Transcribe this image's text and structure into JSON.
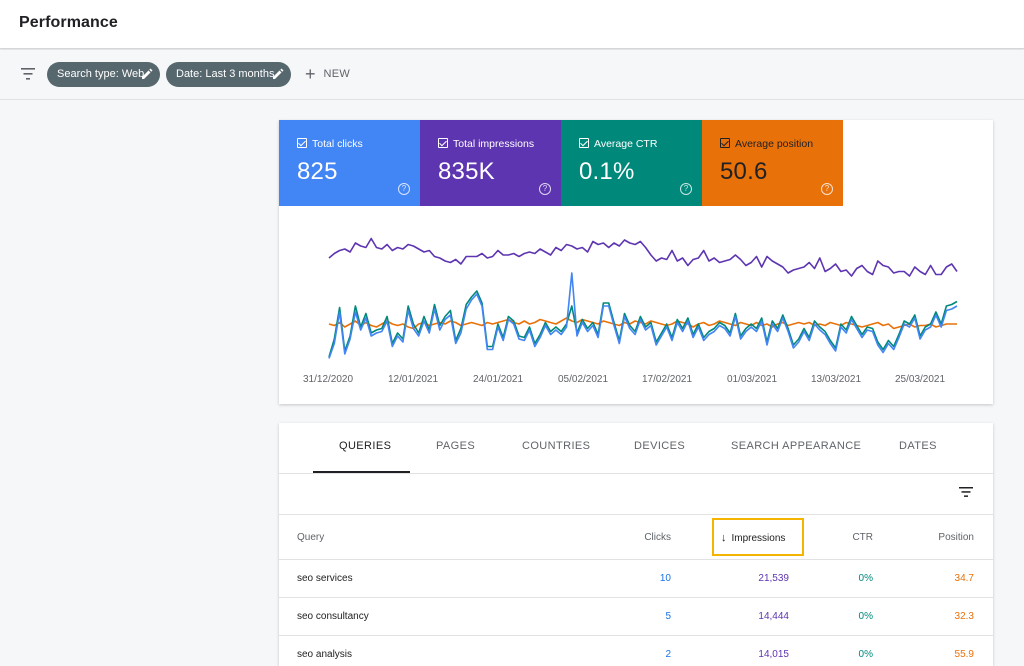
{
  "header": {
    "title": "Performance"
  },
  "filters": {
    "chips": [
      "Search type: Web",
      "Date: Last 3 months"
    ],
    "new_label": "NEW"
  },
  "metrics": [
    {
      "label": "Total clicks",
      "value": "825",
      "color": "#4285f4"
    },
    {
      "label": "Total impressions",
      "value": "835K",
      "color": "#5e35b1"
    },
    {
      "label": "Average CTR",
      "value": "0.1%",
      "color": "#00897b"
    },
    {
      "label": "Average position",
      "value": "50.6",
      "color": "#e8710a"
    }
  ],
  "chart_data": {
    "type": "line",
    "x_ticks": [
      "31/12/2020",
      "12/01/2021",
      "24/01/2021",
      "05/02/2021",
      "17/02/2021",
      "01/03/2021",
      "13/03/2021",
      "25/03/2021"
    ],
    "series": [
      {
        "key": "impressions",
        "color": "#5e35b1",
        "values": [
          0.72,
          0.75,
          0.77,
          0.78,
          0.76,
          0.82,
          0.8,
          0.79,
          0.85,
          0.79,
          0.78,
          0.81,
          0.77,
          0.79,
          0.78,
          0.81,
          0.8,
          0.78,
          0.76,
          0.77,
          0.73,
          0.72,
          0.7,
          0.69,
          0.71,
          0.68,
          0.73,
          0.73,
          0.73,
          0.75,
          0.72,
          0.73,
          0.77,
          0.74,
          0.74,
          0.75,
          0.73,
          0.75,
          0.76,
          0.75,
          0.78,
          0.76,
          0.74,
          0.79,
          0.77,
          0.81,
          0.8,
          0.78,
          0.79,
          0.76,
          0.83,
          0.81,
          0.82,
          0.79,
          0.82,
          0.8,
          0.84,
          0.82,
          0.81,
          0.83,
          0.79,
          0.74,
          0.7,
          0.72,
          0.71,
          0.77,
          0.7,
          0.72,
          0.67,
          0.71,
          0.72,
          0.77,
          0.7,
          0.72,
          0.69,
          0.7,
          0.71,
          0.74,
          0.71,
          0.67,
          0.69,
          0.73,
          0.66,
          0.73,
          0.7,
          0.68,
          0.66,
          0.62,
          0.64,
          0.65,
          0.66,
          0.69,
          0.65,
          0.72,
          0.63,
          0.65,
          0.68,
          0.63,
          0.64,
          0.6,
          0.65,
          0.67,
          0.63,
          0.61,
          0.7,
          0.67,
          0.66,
          0.62,
          0.63,
          0.63,
          0.6,
          0.66,
          0.63,
          0.61,
          0.67,
          0.61,
          0.61,
          0.66,
          0.68,
          0.63
        ]
      },
      {
        "key": "position",
        "color": "#e8710a",
        "values": [
          0.28,
          0.27,
          0.29,
          0.26,
          0.28,
          0.3,
          0.27,
          0.29,
          0.27,
          0.26,
          0.28,
          0.3,
          0.28,
          0.27,
          0.28,
          0.26,
          0.25,
          0.28,
          0.29,
          0.27,
          0.28,
          0.29,
          0.28,
          0.3,
          0.29,
          0.27,
          0.28,
          0.29,
          0.28,
          0.27,
          0.29,
          0.28,
          0.29,
          0.3,
          0.31,
          0.29,
          0.28,
          0.3,
          0.28,
          0.29,
          0.31,
          0.3,
          0.29,
          0.28,
          0.3,
          0.32,
          0.3,
          0.29,
          0.31,
          0.3,
          0.29,
          0.28,
          0.3,
          0.29,
          0.28,
          0.27,
          0.29,
          0.28,
          0.3,
          0.29,
          0.28,
          0.3,
          0.29,
          0.28,
          0.27,
          0.28,
          0.3,
          0.29,
          0.28,
          0.26,
          0.28,
          0.29,
          0.27,
          0.28,
          0.3,
          0.29,
          0.28,
          0.27,
          0.29,
          0.28,
          0.27,
          0.29,
          0.27,
          0.28,
          0.26,
          0.28,
          0.29,
          0.27,
          0.28,
          0.29,
          0.28,
          0.29,
          0.27,
          0.28,
          0.27,
          0.29,
          0.28,
          0.27,
          0.29,
          0.28,
          0.27,
          0.26,
          0.27,
          0.28,
          0.29,
          0.27,
          0.28,
          0.25,
          0.26,
          0.27,
          0.28,
          0.26,
          0.27,
          0.27,
          0.28,
          0.26,
          0.27,
          0.28,
          0.28,
          0.28
        ]
      },
      {
        "key": "ctr",
        "color": "#00897b",
        "values": [
          0.06,
          0.18,
          0.39,
          0.1,
          0.2,
          0.4,
          0.26,
          0.35,
          0.22,
          0.24,
          0.25,
          0.33,
          0.15,
          0.22,
          0.18,
          0.4,
          0.28,
          0.22,
          0.33,
          0.24,
          0.41,
          0.27,
          0.33,
          0.37,
          0.17,
          0.25,
          0.41,
          0.46,
          0.5,
          0.42,
          0.13,
          0.13,
          0.28,
          0.19,
          0.33,
          0.3,
          0.2,
          0.19,
          0.26,
          0.15,
          0.21,
          0.29,
          0.23,
          0.26,
          0.23,
          0.28,
          0.4,
          0.22,
          0.31,
          0.25,
          0.29,
          0.21,
          0.42,
          0.42,
          0.29,
          0.17,
          0.35,
          0.27,
          0.23,
          0.33,
          0.26,
          0.29,
          0.16,
          0.22,
          0.28,
          0.19,
          0.31,
          0.25,
          0.32,
          0.21,
          0.28,
          0.19,
          0.23,
          0.25,
          0.29,
          0.27,
          0.22,
          0.35,
          0.2,
          0.25,
          0.28,
          0.25,
          0.32,
          0.16,
          0.3,
          0.25,
          0.34,
          0.25,
          0.14,
          0.18,
          0.25,
          0.19,
          0.3,
          0.26,
          0.23,
          0.17,
          0.12,
          0.28,
          0.24,
          0.33,
          0.27,
          0.21,
          0.26,
          0.25,
          0.16,
          0.11,
          0.17,
          0.13,
          0.21,
          0.3,
          0.28,
          0.34,
          0.2,
          0.26,
          0.28,
          0.36,
          0.28,
          0.4,
          0.41,
          0.43
        ]
      },
      {
        "key": "clicks",
        "color": "#4285f4",
        "values": [
          0.05,
          0.15,
          0.36,
          0.08,
          0.18,
          0.36,
          0.24,
          0.32,
          0.2,
          0.22,
          0.23,
          0.3,
          0.13,
          0.2,
          0.16,
          0.37,
          0.25,
          0.2,
          0.3,
          0.22,
          0.38,
          0.24,
          0.31,
          0.34,
          0.15,
          0.22,
          0.38,
          0.44,
          0.48,
          0.4,
          0.11,
          0.11,
          0.26,
          0.17,
          0.31,
          0.28,
          0.18,
          0.17,
          0.24,
          0.13,
          0.19,
          0.27,
          0.21,
          0.24,
          0.21,
          0.26,
          0.62,
          0.2,
          0.29,
          0.23,
          0.27,
          0.19,
          0.4,
          0.4,
          0.27,
          0.15,
          0.33,
          0.25,
          0.21,
          0.31,
          0.24,
          0.27,
          0.14,
          0.2,
          0.26,
          0.17,
          0.29,
          0.23,
          0.3,
          0.19,
          0.26,
          0.17,
          0.21,
          0.23,
          0.27,
          0.25,
          0.2,
          0.33,
          0.18,
          0.23,
          0.26,
          0.23,
          0.3,
          0.14,
          0.28,
          0.23,
          0.32,
          0.23,
          0.12,
          0.16,
          0.23,
          0.17,
          0.28,
          0.24,
          0.21,
          0.15,
          0.1,
          0.26,
          0.22,
          0.31,
          0.25,
          0.19,
          0.24,
          0.23,
          0.14,
          0.09,
          0.15,
          0.11,
          0.19,
          0.28,
          0.26,
          0.32,
          0.18,
          0.24,
          0.26,
          0.34,
          0.26,
          0.37,
          0.38,
          0.4
        ]
      }
    ]
  },
  "tabs": [
    "QUERIES",
    "PAGES",
    "COUNTRIES",
    "DEVICES",
    "SEARCH APPEARANCE",
    "DATES"
  ],
  "table": {
    "headers": {
      "query": "Query",
      "clicks": "Clicks",
      "impressions": "Impressions",
      "ctr": "CTR",
      "position": "Position"
    },
    "rows": [
      {
        "query": "seo services",
        "clicks": "10",
        "impressions": "21,539",
        "ctr": "0%",
        "position": "34.7"
      },
      {
        "query": "seo consultancy",
        "clicks": "5",
        "impressions": "14,444",
        "ctr": "0%",
        "position": "32.3"
      },
      {
        "query": "seo analysis",
        "clicks": "2",
        "impressions": "14,015",
        "ctr": "0%",
        "position": "55.9"
      }
    ]
  }
}
